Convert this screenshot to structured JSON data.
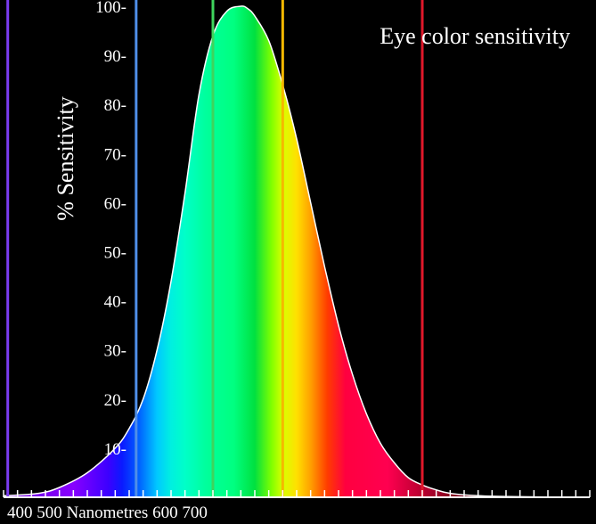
{
  "chart_data": {
    "type": "area",
    "title": "Eye color sensitivity",
    "ylabel": "% Sensitivity",
    "xlabel": "Nanometres",
    "x_tick_labels": [
      "400",
      "500",
      "600",
      "700"
    ],
    "y_tick_labels": [
      "10-",
      "20-",
      "30-",
      "40-",
      "50-",
      "60-",
      "70-",
      "80-",
      "90-",
      "100-"
    ],
    "y_ticks": [
      10,
      20,
      30,
      40,
      50,
      60,
      70,
      80,
      90,
      100
    ],
    "ylim": [
      0,
      100
    ],
    "xlim": [
      380,
      800
    ],
    "curve": {
      "x": [
        380,
        405,
        420,
        440,
        460,
        470,
        480,
        490,
        500,
        510,
        520,
        530,
        540,
        550,
        555,
        560,
        570,
        580,
        590,
        600,
        610,
        620,
        630,
        640,
        650,
        660,
        670,
        680,
        690,
        700,
        720,
        750,
        780,
        800
      ],
      "y": [
        0.3,
        0.8,
        2,
        5,
        10,
        14,
        20,
        30,
        44,
        62,
        82,
        94,
        99,
        100,
        99.5,
        98,
        93,
        84,
        73,
        60,
        47,
        35,
        25,
        17,
        11,
        7,
        4,
        2.5,
        1.5,
        0.8,
        0.3,
        0.1,
        0,
        0
      ]
    },
    "reference_lines": [
      {
        "x": 383,
        "color": "#7a3cf0"
      },
      {
        "x": 475,
        "color": "#4f8ee8"
      },
      {
        "x": 530,
        "color": "#3fd45c"
      },
      {
        "x": 580,
        "color": "#f5b800"
      },
      {
        "x": 680,
        "color": "#e0182a"
      }
    ],
    "gradient_stops": [
      {
        "x": 380,
        "color": "#6a00d8"
      },
      {
        "x": 430,
        "color": "#8800ff"
      },
      {
        "x": 455,
        "color": "#3c00ff"
      },
      {
        "x": 465,
        "color": "#0a1aff"
      },
      {
        "x": 478,
        "color": "#0068ff"
      },
      {
        "x": 490,
        "color": "#00c8ff"
      },
      {
        "x": 500,
        "color": "#00f0e0"
      },
      {
        "x": 510,
        "color": "#00ffc8"
      },
      {
        "x": 525,
        "color": "#00ff9c"
      },
      {
        "x": 545,
        "color": "#00ff80"
      },
      {
        "x": 560,
        "color": "#00e040"
      },
      {
        "x": 572,
        "color": "#80ff00"
      },
      {
        "x": 580,
        "color": "#d8ff00"
      },
      {
        "x": 590,
        "color": "#ffe000"
      },
      {
        "x": 600,
        "color": "#ffa000"
      },
      {
        "x": 612,
        "color": "#ff3c00"
      },
      {
        "x": 625,
        "color": "#ff0040"
      },
      {
        "x": 655,
        "color": "#ff0050"
      },
      {
        "x": 680,
        "color": "#b80030"
      },
      {
        "x": 720,
        "color": "#5a0010"
      },
      {
        "x": 800,
        "color": "#200006"
      }
    ],
    "grid": false,
    "background": "#000000",
    "curve_stroke": "#ffffff"
  }
}
